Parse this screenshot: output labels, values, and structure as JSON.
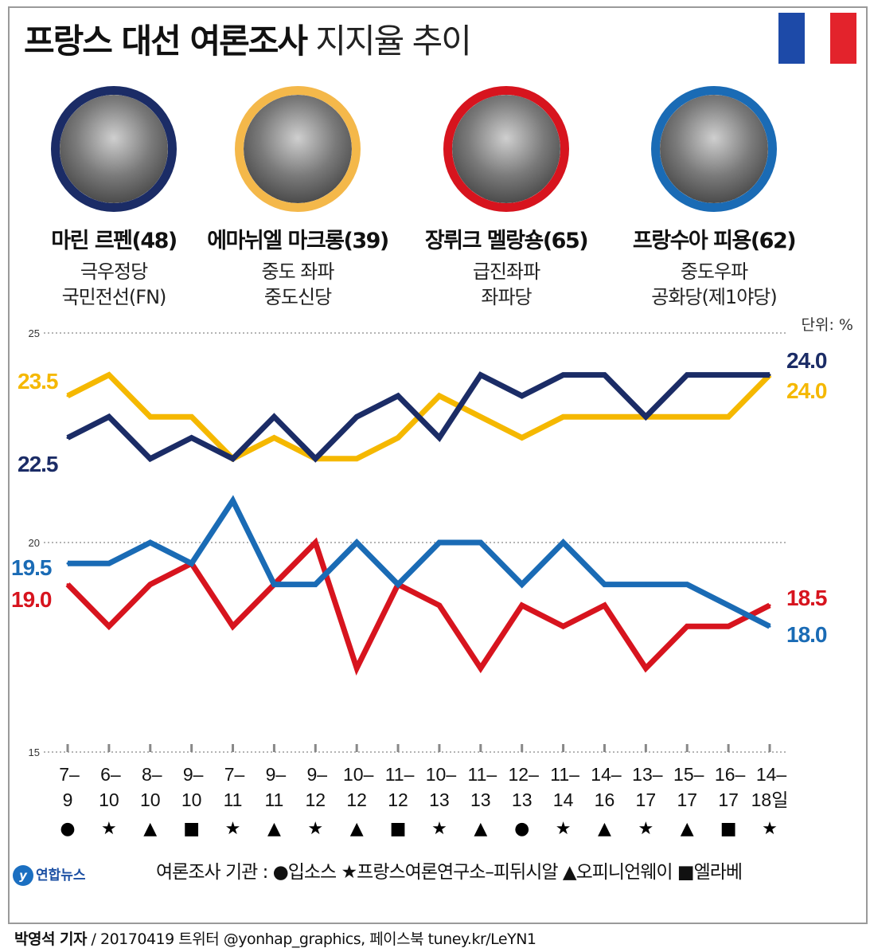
{
  "title_bold": "프랑스 대선 여론조사",
  "title_light": "지지율 추이",
  "flag_colors": [
    "#1d4aa8",
    "#ffffff",
    "#e3232c"
  ],
  "candidates": [
    {
      "name": "마린 르펜(48)",
      "party1": "극우정당",
      "party2": "국민전선(FN)",
      "color": "#1b2c66"
    },
    {
      "name": "에마뉘엘 마크롱(39)",
      "party1": "중도 좌파",
      "party2": "중도신당",
      "color": "#f4b84a"
    },
    {
      "name": "장뤼크 멜랑숑(65)",
      "party1": "급진좌파",
      "party2": "좌파당",
      "color": "#d7141e"
    },
    {
      "name": "프랑수아 피용(62)",
      "party1": "중도우파",
      "party2": "공화당(제1야당)",
      "color": "#1a6bb5"
    }
  ],
  "chart_data": {
    "type": "line",
    "unit_label": "단위: %",
    "ylim": [
      15,
      25
    ],
    "yticks": [
      "25",
      "20",
      "15"
    ],
    "categories": [
      {
        "top": "7–",
        "bottom": "9"
      },
      {
        "top": "6–",
        "bottom": "10"
      },
      {
        "top": "8–",
        "bottom": "10"
      },
      {
        "top": "9–",
        "bottom": "10"
      },
      {
        "top": "7–",
        "bottom": "11"
      },
      {
        "top": "9–",
        "bottom": "11"
      },
      {
        "top": "9–",
        "bottom": "12"
      },
      {
        "top": "10–",
        "bottom": "12"
      },
      {
        "top": "11–",
        "bottom": "12"
      },
      {
        "top": "10–",
        "bottom": "13"
      },
      {
        "top": "11–",
        "bottom": "13"
      },
      {
        "top": "12–",
        "bottom": "13"
      },
      {
        "top": "11–",
        "bottom": "14"
      },
      {
        "top": "14–",
        "bottom": "16"
      },
      {
        "top": "13–",
        "bottom": "17"
      },
      {
        "top": "15–",
        "bottom": "17"
      },
      {
        "top": "16–",
        "bottom": "17"
      },
      {
        "top": "14–",
        "bottom": "18일"
      }
    ],
    "pollster_markers": [
      "●",
      "★",
      "▲",
      "■",
      "★",
      "▲",
      "★",
      "▲",
      "■",
      "★",
      "▲",
      "●",
      "★",
      "▲",
      "★",
      "▲",
      "■",
      "★"
    ],
    "series": [
      {
        "name": "마크롱",
        "color": "#f5b800",
        "values": [
          23.5,
          24.0,
          23.0,
          23.0,
          22.0,
          22.5,
          22.0,
          22.0,
          22.5,
          23.5,
          23.0,
          22.5,
          23.0,
          23.0,
          23.0,
          23.0,
          23.0,
          24.0
        ],
        "start_label": "23.5",
        "end_label": "24.0"
      },
      {
        "name": "르펜",
        "color": "#1b2c66",
        "values": [
          22.5,
          23.0,
          22.0,
          22.5,
          22.0,
          23.0,
          22.0,
          23.0,
          23.5,
          22.5,
          24.0,
          23.5,
          24.0,
          24.0,
          23.0,
          24.0,
          24.0,
          24.0
        ],
        "start_label": "22.5",
        "end_label": "24.0"
      },
      {
        "name": "멜랑숑",
        "color": "#d7141e",
        "values": [
          19.0,
          18.0,
          19.0,
          19.5,
          18.0,
          19.0,
          20.0,
          17.0,
          19.0,
          18.5,
          17.0,
          18.5,
          18.0,
          18.5,
          17.0,
          18.0,
          18.0,
          18.5
        ],
        "start_label": "19.0",
        "end_label": "18.5"
      },
      {
        "name": "피용",
        "color": "#1a6bb5",
        "values": [
          19.5,
          19.5,
          20.0,
          19.5,
          21.0,
          19.0,
          19.0,
          20.0,
          19.0,
          20.0,
          20.0,
          19.0,
          20.0,
          19.0,
          19.0,
          19.0,
          18.5,
          18.0
        ],
        "start_label": "19.5",
        "end_label": "18.0"
      }
    ]
  },
  "legend": {
    "title": "여론조사 기관 :",
    "items": [
      {
        "symbol": "●",
        "label": "입소스"
      },
      {
        "symbol": "★",
        "label": "프랑스여론연구소–피뒤시알"
      },
      {
        "symbol": "▲",
        "label": "오피니언웨이"
      },
      {
        "symbol": "■",
        "label": "엘라베"
      }
    ]
  },
  "logo_text": "연합뉴스",
  "logo_mark": "y",
  "footer": {
    "reporter": "박영석 기자",
    "rest": " / 20170419     트위터 @yonhap_graphics, 페이스북 tuney.kr/LeYN1"
  }
}
